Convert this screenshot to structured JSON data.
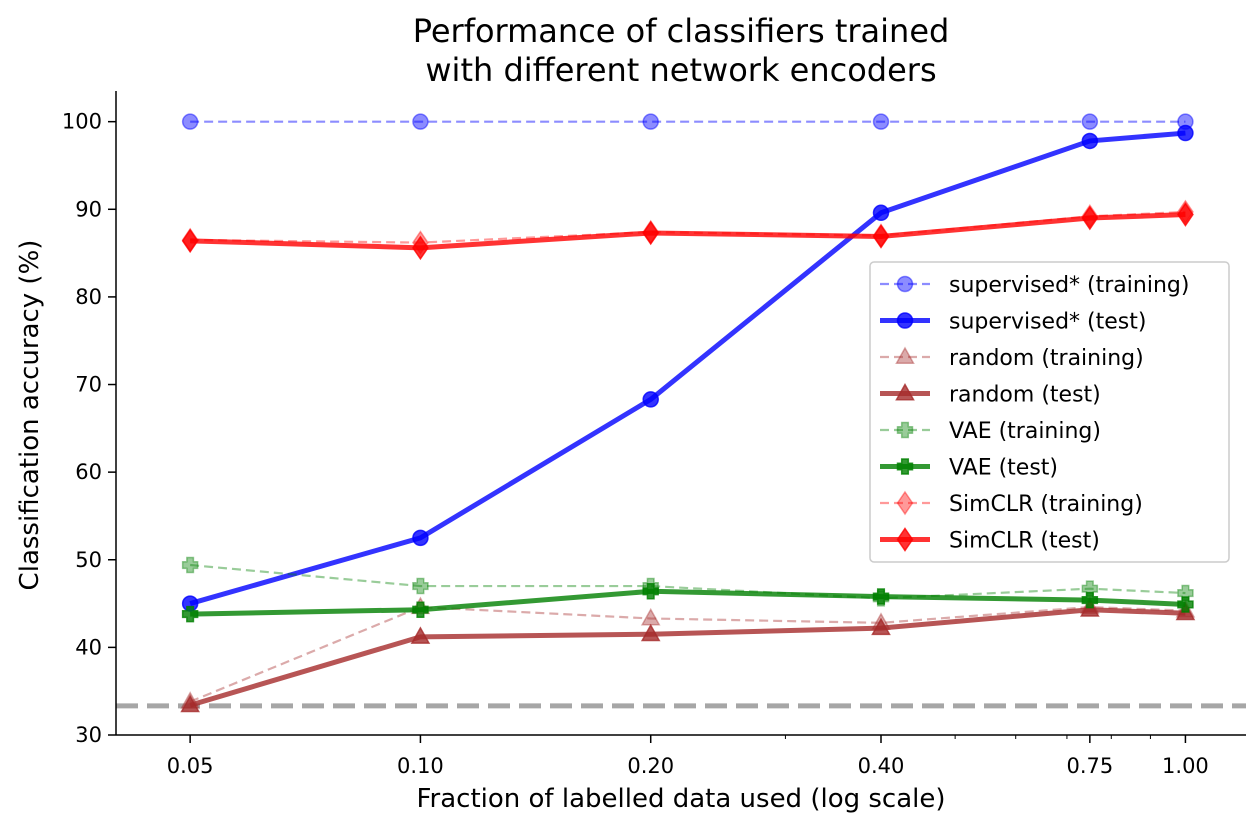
{
  "chart_data": {
    "type": "line",
    "title_lines": [
      "Performance of classifiers trained",
      "with different network encoders"
    ],
    "xlabel": "Fraction of labelled data used (log scale)",
    "ylabel": "Classification accuracy (%)",
    "x": [
      0.05,
      0.1,
      0.2,
      0.4,
      0.75,
      1.0
    ],
    "x_tick_labels": [
      "0.05",
      "0.10",
      "0.20",
      "0.40",
      "0.75",
      "1.00"
    ],
    "xscale": "log",
    "xlim": [
      0.04,
      1.2
    ],
    "ylim": [
      30,
      103.5
    ],
    "y_ticks": [
      30,
      40,
      50,
      60,
      70,
      80,
      90,
      100
    ],
    "reference_line": {
      "y": 33.33,
      "color": "#a6a6a6",
      "style": "dashed"
    },
    "grid": false,
    "legend_position": "center-right",
    "series": [
      {
        "name": "supervised* (training)",
        "values": [
          100,
          100,
          100,
          100,
          100,
          100
        ],
        "color": "#0000ff",
        "marker": "circle",
        "style": "dashed",
        "opacity": 0.45
      },
      {
        "name": "supervised* (test)",
        "values": [
          45.0,
          52.5,
          68.3,
          89.6,
          97.8,
          98.7
        ],
        "color": "#0000ff",
        "marker": "circle",
        "style": "solid",
        "opacity": 0.8
      },
      {
        "name": "random (training)",
        "values": [
          33.8,
          44.6,
          43.3,
          42.8,
          44.6,
          44.2
        ],
        "color": "#a52a2a",
        "marker": "triangle",
        "style": "dashed",
        "opacity": 0.4
      },
      {
        "name": "random (test)",
        "values": [
          33.4,
          41.2,
          41.5,
          42.2,
          44.3,
          43.9
        ],
        "color": "#a52a2a",
        "marker": "triangle",
        "style": "solid",
        "opacity": 0.8
      },
      {
        "name": "VAE (training)",
        "values": [
          49.4,
          47.0,
          47.0,
          45.6,
          46.7,
          46.2
        ],
        "color": "#008000",
        "marker": "plus",
        "style": "dashed",
        "opacity": 0.4
      },
      {
        "name": "VAE (test)",
        "values": [
          43.8,
          44.3,
          46.4,
          45.8,
          45.4,
          44.9
        ],
        "color": "#008000",
        "marker": "plus",
        "style": "solid",
        "opacity": 0.8
      },
      {
        "name": "SimCLR (training)",
        "values": [
          86.5,
          86.2,
          87.4,
          87.0,
          89.2,
          89.7
        ],
        "color": "#ff0000",
        "marker": "diamond",
        "style": "dashed",
        "opacity": 0.4
      },
      {
        "name": "SimCLR (test)",
        "values": [
          86.4,
          85.6,
          87.3,
          86.9,
          89.0,
          89.4
        ],
        "color": "#ff0000",
        "marker": "diamond",
        "style": "solid",
        "opacity": 0.8
      }
    ]
  }
}
